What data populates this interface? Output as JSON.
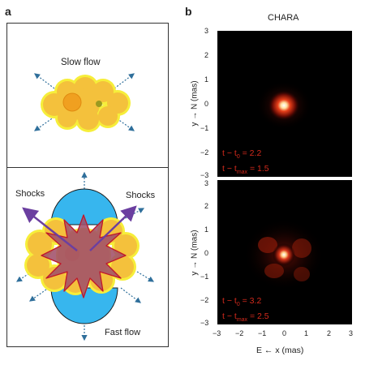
{
  "panel_a": {
    "letter": "a",
    "top_label": "Slow flow",
    "bottom_labels": {
      "shocks_left": "Shocks",
      "shocks_right": "Shocks",
      "fast_flow": "Fast flow"
    },
    "colors": {
      "cloud": "#f4c13c",
      "cloud_edge": "#f6f000",
      "core": "#f0a020",
      "lobe": "#37b6ee",
      "star": "#a0506a",
      "arrow": "#6b3fa0",
      "dash_arrow": "#2f6f9b"
    }
  },
  "panel_b": {
    "letter": "b",
    "title": "CHARA",
    "ylabel": "y → N (mas)",
    "xlabel": "E ← x (mas)",
    "yticks": [
      "3",
      "2",
      "1",
      "0",
      "−1",
      "−2",
      "−3"
    ],
    "xticks": [
      "−3",
      "−2",
      "−1",
      "0",
      "1",
      "2",
      "3"
    ],
    "top_image": {
      "line1_a": "t − t",
      "line1_sub": "0",
      "line1_b": " = 2.2",
      "line2_a": "t − t",
      "line2_sub": "max",
      "line2_b": " = 1.5"
    },
    "bottom_image": {
      "line1_a": "t − t",
      "line1_sub": "0",
      "line1_b": " = 3.2",
      "line2_a": "t − t",
      "line2_sub": "max",
      "line2_b": " = 2.5"
    },
    "colors": {
      "background": "#000000",
      "text": "#d42a1c"
    }
  }
}
